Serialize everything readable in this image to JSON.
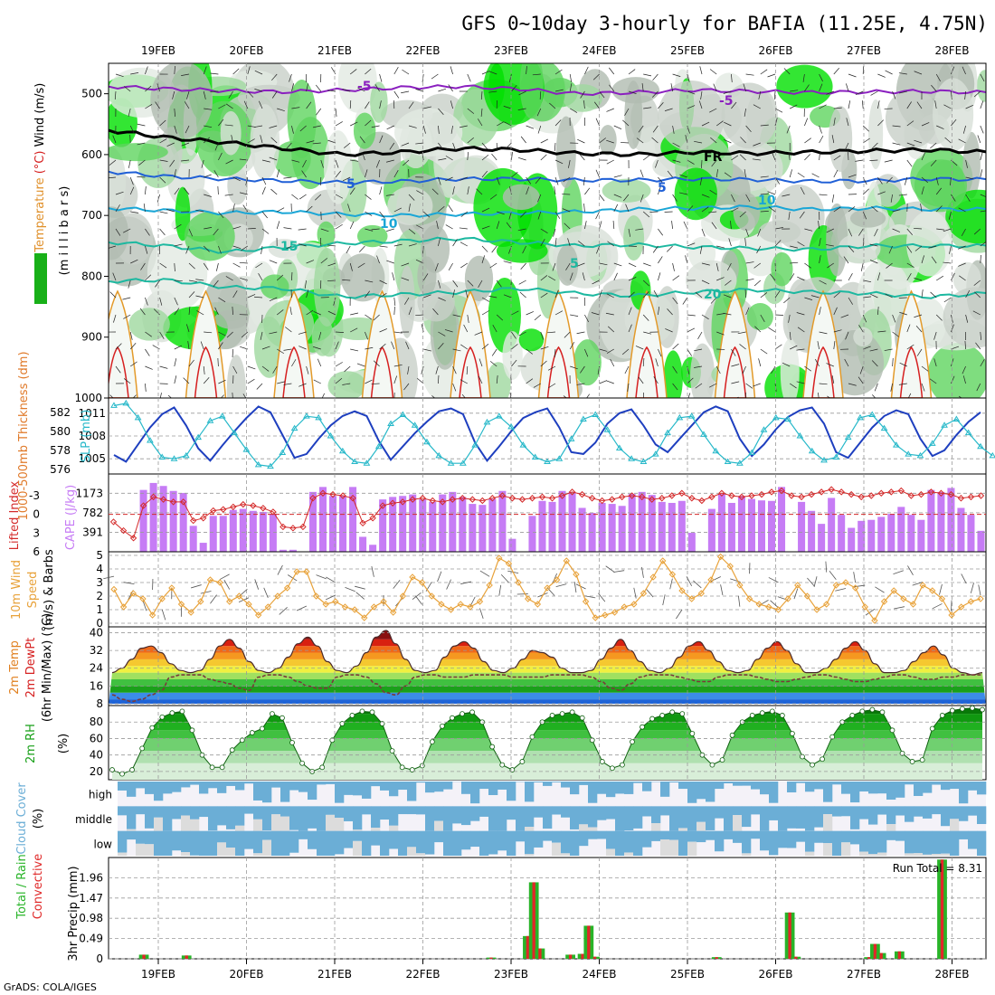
{
  "title": "GFS 0~10day 3-hourly for BAFIA (11.25E, 4.75N)",
  "footer": "GrADS: COLA/IGES",
  "dates": [
    "19FEB",
    "20FEB",
    "21FEB",
    "22FEB",
    "23FEB",
    "24FEB",
    "25FEB",
    "26FEB",
    "27FEB",
    "28FEB"
  ],
  "colors": {
    "purple_contour": "#8a1fbf",
    "black_contour": "#000000",
    "blue_contour": "#1f5fd6",
    "cyan_contour": "#1aa6d6",
    "teal_contour": "#1cb8a0",
    "orange_contour": "#e39a2a",
    "red_contour": "#d62020",
    "rh_green": "#00e000",
    "thickness_line": "#1e3fbf",
    "slp_line": "#26b8c9",
    "cape_bar": "#c67cf5",
    "lifted_index": "#d42a2a",
    "wind_speed": "#e8a23a",
    "temp_line": "#4a2a2a",
    "dewpt_line": "#7a3a3a",
    "rh_fill": "#18a018",
    "cloud_blue": "#6baed6",
    "cloud_grey": "#dcdcdc",
    "precip_green": "#28b428",
    "precip_red": "#e02828"
  },
  "chart_data": [
    {
      "type": "heatmap",
      "name": "Upper-air cross section",
      "ylabel_parts": [
        {
          "text": "RH (%)",
          "color": "#18b018"
        },
        {
          "text": "Temperature",
          "color": "#e0902a"
        },
        {
          "text": "(°C)",
          "color": "#d62020"
        },
        {
          "text": "Wind (m/s)",
          "color": "#000000"
        }
      ],
      "ylabel2": "(m i l l i b a r s)",
      "yticks": [
        500,
        600,
        700,
        800,
        900,
        1000
      ],
      "ylim": [
        1000,
        450
      ],
      "contour_labels": [
        {
          "text": "-5",
          "color": "#8a1fbf"
        },
        {
          "text": "-5",
          "color": "#8a1fbf"
        },
        {
          "text": "FR",
          "color": "#000000"
        },
        {
          "text": "5",
          "color": "#1f5fd6"
        },
        {
          "text": "5",
          "color": "#1f5fd6"
        },
        {
          "text": "10",
          "color": "#1aa6d6"
        },
        {
          "text": "10",
          "color": "#1aa6d6"
        },
        {
          "text": "15",
          "color": "#1cb8a0"
        },
        {
          "text": "5",
          "color": "#1cb8a0"
        },
        {
          "text": "20",
          "color": "#1cb8a0"
        }
      ],
      "isotherms_hpa": {
        "minus5": [
          488,
          492,
          495,
          497,
          494,
          490,
          488,
          492,
          500,
          498,
          494,
          496,
          498,
          497,
          496,
          498
        ],
        "zero": [
          560,
          572,
          580,
          590,
          600,
          596,
          590,
          592,
          598,
          600,
          596,
          598,
          596,
          594,
          592,
          596
        ],
        "plus5": [
          628,
          636,
          640,
          643,
          646,
          644,
          640,
          640,
          642,
          642,
          640,
          641,
          644,
          643,
          640,
          641
        ],
        "plus10": [
          688,
          692,
          696,
          694,
          698,
          700,
          698,
          696,
          694,
          690,
          688,
          686,
          690,
          688,
          690,
          690
        ],
        "plus15": [
          744,
          750,
          760,
          752,
          746,
          742,
          738,
          744,
          750,
          748,
          752,
          754,
          756,
          750,
          750,
          750
        ],
        "plus20": [
          808,
          806,
          818,
          820,
          834,
          830,
          826,
          820,
          828,
          832,
          826,
          822,
          826,
          828,
          834,
          828
        ]
      }
    },
    {
      "type": "line",
      "name": "1000-500mb Thickness and SLP",
      "ylabel_left": "1000-500mb Thickness (dm)",
      "ylabel_right": "SLP (mb)",
      "yticks_left": [
        576,
        578,
        580,
        582
      ],
      "yticks_right": [
        1005,
        1008,
        1011
      ],
      "ylim_left": [
        575.5,
        583.5
      ],
      "ylim_right": [
        1003,
        1013
      ],
      "series": [
        {
          "name": "Thickness",
          "values": [
            577.5,
            576.8,
            578.6,
            580.4,
            581.8,
            582.5,
            580.6,
            578.2,
            576.9,
            578.5,
            580.0,
            581.4,
            582.6,
            582.0,
            579.6,
            577.2,
            577.6,
            579.2,
            580.6,
            581.6,
            582.1,
            581.6,
            579.0,
            577.0,
            578.4,
            579.8,
            581.0,
            582.1,
            582.4,
            581.8,
            578.8,
            576.9,
            578.4,
            580.0,
            581.4,
            582.0,
            582.4,
            580.4,
            577.8,
            577.6,
            578.8,
            580.8,
            581.9,
            582.3,
            580.6,
            578.6,
            577.8,
            579.2,
            580.6,
            582.0,
            582.6,
            582.1,
            579.2,
            577.4,
            578.6,
            580.2,
            581.5,
            582.2,
            582.5,
            580.8,
            577.8,
            577.2,
            578.8,
            580.4,
            581.6,
            582.2,
            581.8,
            579.2,
            577.4,
            578.0,
            579.6,
            581.0,
            582.0
          ]
        },
        {
          "name": "SLP",
          "values": [
            1012.0,
            1012.3,
            1010.4,
            1007.4,
            1005.2,
            1005.0,
            1005.4,
            1007.8,
            1010.0,
            1010.6,
            1008.4,
            1006.2,
            1004.2,
            1004.0,
            1005.8,
            1009.0,
            1010.6,
            1010.4,
            1008.0,
            1006.0,
            1004.6,
            1004.4,
            1006.6,
            1009.6,
            1010.8,
            1009.4,
            1007.2,
            1005.4,
            1004.4,
            1004.4,
            1006.8,
            1009.8,
            1010.6,
            1009.2,
            1006.8,
            1005.2,
            1004.6,
            1005.0,
            1007.6,
            1010.2,
            1010.8,
            1008.8,
            1006.4,
            1005.0,
            1004.6,
            1005.6,
            1008.4,
            1010.4,
            1010.6,
            1008.2,
            1006.0,
            1004.6,
            1004.4,
            1005.8,
            1008.8,
            1010.4,
            1010.2,
            1008.0,
            1006.0,
            1004.8,
            1005.2,
            1007.8,
            1010.4,
            1010.8,
            1009.0,
            1006.8,
            1005.6,
            1005.4,
            1007.0,
            1009.4,
            1010.2,
            1008.4,
            1006.6,
            1005.4
          ]
        }
      ]
    },
    {
      "type": "bar",
      "name": "Lifted Index and CAPE",
      "ylabel_left": "Lifted Index",
      "ylabel_right": "CAPE (J/kg)",
      "yticks_left": [
        -3,
        0,
        3,
        6
      ],
      "yticks_right": [
        391,
        782,
        1173
      ],
      "ylim_cape": [
        0,
        1560
      ],
      "series": [
        {
          "name": "CAPE",
          "values": [
            0,
            0,
            0,
            1240,
            1380,
            1320,
            1220,
            1180,
            520,
            180,
            720,
            720,
            840,
            860,
            820,
            800,
            760,
            40,
            40,
            0,
            1200,
            1300,
            1120,
            1120,
            1300,
            300,
            140,
            1050,
            1100,
            1120,
            1150,
            1050,
            1000,
            1150,
            1200,
            1100,
            960,
            940,
            1060,
            1220,
            260,
            0,
            720,
            1020,
            1000,
            1220,
            1200,
            880,
            780,
            980,
            960,
            920,
            1160,
            1200,
            1140,
            1000,
            980,
            1020,
            380,
            0,
            860,
            1160,
            980,
            1120,
            1060,
            1030,
            1020,
            1300,
            0,
            1000,
            820,
            560,
            1080,
            740,
            480,
            620,
            640,
            700,
            760,
            900,
            740,
            640,
            1240,
            1200,
            1280,
            880,
            740,
            420
          ]
        },
        {
          "name": "Lifted Index",
          "values": [
            1.2,
            2.6,
            3.8,
            -1.4,
            -2.8,
            -2.4,
            -2.0,
            -2.0,
            1.0,
            0.6,
            -0.6,
            -0.8,
            -1.2,
            -1.6,
            -1.4,
            -1.0,
            -0.4,
            2.0,
            2.2,
            2.0,
            -2.6,
            -3.4,
            -3.2,
            -3.0,
            -2.6,
            1.4,
            0.6,
            -1.4,
            -1.8,
            -2.0,
            -2.4,
            -2.6,
            -2.2,
            -2.0,
            -2.4,
            -2.6,
            -2.4,
            -2.2,
            -2.6,
            -3.0,
            -2.6,
            -2.4,
            -2.6,
            -2.8,
            -2.6,
            -3.0,
            -3.6,
            -3.2,
            -2.6,
            -2.2,
            -2.4,
            -2.8,
            -3.0,
            -2.8,
            -2.4,
            -2.6,
            -3.0,
            -3.4,
            -2.6,
            -2.2,
            -2.8,
            -3.4,
            -3.0,
            -2.8,
            -3.0,
            -3.2,
            -3.6,
            -3.8,
            -3.0,
            -2.8,
            -3.2,
            -3.6,
            -4.0,
            -3.6,
            -3.2,
            -2.8,
            -3.0,
            -3.4,
            -3.6,
            -3.8,
            -3.0,
            -3.2,
            -3.6,
            -3.4,
            -3.2,
            -2.6,
            -2.8,
            -3.0
          ]
        }
      ]
    },
    {
      "type": "line",
      "name": "10m Wind Speed & Barbs",
      "ylabel_parts": [
        {
          "text": "10m Wind",
          "color": "#e8a23a"
        },
        {
          "text": "Speed",
          "color": "#e8a23a"
        },
        {
          "text": "(m/s) & Barbs",
          "color": "#000000"
        }
      ],
      "yticks": [
        0,
        1,
        2,
        3,
        4,
        5
      ],
      "ylim": [
        0,
        5
      ],
      "values": [
        2.5,
        1.2,
        2.2,
        1.8,
        0.6,
        1.8,
        2.6,
        1.4,
        0.8,
        1.6,
        3.2,
        3.0,
        1.6,
        2.0,
        1.4,
        0.6,
        1.2,
        2.0,
        2.6,
        3.8,
        3.8,
        2.0,
        1.4,
        1.6,
        1.2,
        1.0,
        0.4,
        1.2,
        1.6,
        0.8,
        2.0,
        3.4,
        3.0,
        2.0,
        1.4,
        1.0,
        1.4,
        1.2,
        1.6,
        2.8,
        4.8,
        4.4,
        3.0,
        1.8,
        1.4,
        2.6,
        3.2,
        4.6,
        3.6,
        1.6,
        0.4,
        0.6,
        0.8,
        1.2,
        1.4,
        2.2,
        3.4,
        4.6,
        3.6,
        2.4,
        1.8,
        2.2,
        3.2,
        4.9,
        4.2,
        2.8,
        1.8,
        1.4,
        1.2,
        1.0,
        1.8,
        2.8,
        2.0,
        1.0,
        1.4,
        2.8,
        3.0,
        2.6,
        1.2,
        0.2,
        1.6,
        2.4,
        1.8,
        1.4,
        2.8,
        2.4,
        1.8,
        0.6,
        1.2,
        1.6,
        1.8
      ]
    },
    {
      "type": "area",
      "name": "2m Temp and DewPt",
      "ylabel_parts": [
        {
          "text": "2m Temp",
          "color": "#e08020"
        },
        {
          "text": "2m DewPt",
          "color": "#d62020"
        },
        {
          "text": "(6hr Min/Max) (°C)",
          "color": "#000000"
        }
      ],
      "yticks": [
        8,
        16,
        24,
        32,
        40
      ],
      "ylim": [
        8,
        41
      ],
      "series": [
        {
          "name": "2m Temp",
          "values": [
            22,
            24,
            28,
            33,
            34,
            31,
            26,
            23,
            22,
            23,
            28,
            34,
            37,
            33,
            27,
            23,
            22,
            24,
            29,
            35,
            38,
            34,
            27,
            23,
            22,
            25,
            31,
            38,
            41,
            35,
            28,
            23,
            22,
            23,
            29,
            34,
            36,
            33,
            27,
            23,
            22,
            24,
            28,
            32,
            31,
            29,
            24,
            22,
            22,
            23,
            28,
            33,
            37,
            32,
            27,
            23,
            22,
            24,
            29,
            34,
            36,
            32,
            27,
            23,
            22,
            23,
            28,
            33,
            36,
            32,
            26,
            22,
            22,
            24,
            28,
            33,
            36,
            32,
            26,
            22,
            22,
            23,
            27,
            31,
            34,
            30,
            24,
            22,
            21,
            22
          ]
        },
        {
          "name": "2m DewPt",
          "values": [
            12,
            10,
            9,
            10,
            12,
            14,
            20,
            21,
            21,
            21,
            19,
            18,
            17,
            15,
            14,
            20,
            21,
            21,
            20,
            18,
            16,
            15,
            15,
            20,
            21,
            21,
            20,
            17,
            13,
            12,
            16,
            20,
            21,
            21,
            20,
            20,
            20,
            21,
            21,
            21,
            21,
            20,
            20,
            20,
            20,
            21,
            21,
            21,
            21,
            20,
            18,
            15,
            14,
            17,
            20,
            21,
            21,
            21,
            20,
            19,
            18,
            18,
            20,
            21,
            21,
            21,
            20,
            19,
            18,
            18,
            19,
            20,
            21,
            21,
            20,
            19,
            18,
            18,
            19,
            20,
            21,
            21,
            20,
            19,
            19,
            20,
            20,
            21,
            21,
            21
          ]
        }
      ]
    },
    {
      "type": "area",
      "name": "2m RH",
      "ylabel": "2m RH",
      "yunit": "(%)",
      "yticks": [
        20,
        40,
        60,
        80
      ],
      "ylim": [
        10,
        100
      ],
      "values": [
        22,
        17,
        22,
        48,
        73,
        86,
        91,
        93,
        70,
        40,
        25,
        25,
        46,
        58,
        67,
        72,
        90,
        85,
        55,
        30,
        20,
        25,
        58,
        78,
        88,
        93,
        92,
        78,
        45,
        25,
        22,
        27,
        56,
        75,
        85,
        90,
        92,
        80,
        50,
        28,
        22,
        32,
        62,
        80,
        88,
        90,
        92,
        85,
        58,
        32,
        24,
        28,
        56,
        74,
        84,
        88,
        92,
        90,
        66,
        40,
        28,
        34,
        64,
        80,
        88,
        91,
        93,
        88,
        66,
        38,
        28,
        35,
        62,
        80,
        88,
        93,
        95,
        92,
        70,
        42,
        32,
        34,
        72,
        88,
        94,
        96,
        97,
        95
      ]
    },
    {
      "type": "heatmap",
      "name": "Cloud Cover",
      "ylabel": "Cloud Cover",
      "yunit": "(%)",
      "levels": [
        "high",
        "middle",
        "low"
      ]
    },
    {
      "type": "bar",
      "name": "3hr Precip",
      "ylabel_parts": [
        {
          "text": "Total / Rain",
          "color": "#28b428"
        },
        {
          "text": "Convective",
          "color": "#e02828"
        }
      ],
      "ylabel2": "3hr Precip (mm)",
      "yticks": [
        0,
        0.49,
        0.98,
        1.47,
        1.96
      ],
      "ylim": [
        0,
        2.45
      ],
      "run_total_label": "Run Total = 8.31",
      "bars": [
        {
          "i": 5,
          "v": 0.1
        },
        {
          "i": 12,
          "v": 0.08
        },
        {
          "i": 62,
          "v": 0.03
        },
        {
          "i": 68,
          "v": 0.55
        },
        {
          "i": 69,
          "v": 1.85
        },
        {
          "i": 70,
          "v": 0.25
        },
        {
          "i": 75,
          "v": 0.1
        },
        {
          "i": 77,
          "v": 0.12
        },
        {
          "i": 78,
          "v": 0.8
        },
        {
          "i": 79,
          "v": 0.05
        },
        {
          "i": 99,
          "v": 0.04
        },
        {
          "i": 111,
          "v": 1.12
        },
        {
          "i": 112,
          "v": 0.05
        },
        {
          "i": 124,
          "v": 0.04
        },
        {
          "i": 125,
          "v": 0.36
        },
        {
          "i": 126,
          "v": 0.14
        },
        {
          "i": 129,
          "v": 0.18
        },
        {
          "i": 136,
          "v": 2.4
        }
      ]
    }
  ]
}
